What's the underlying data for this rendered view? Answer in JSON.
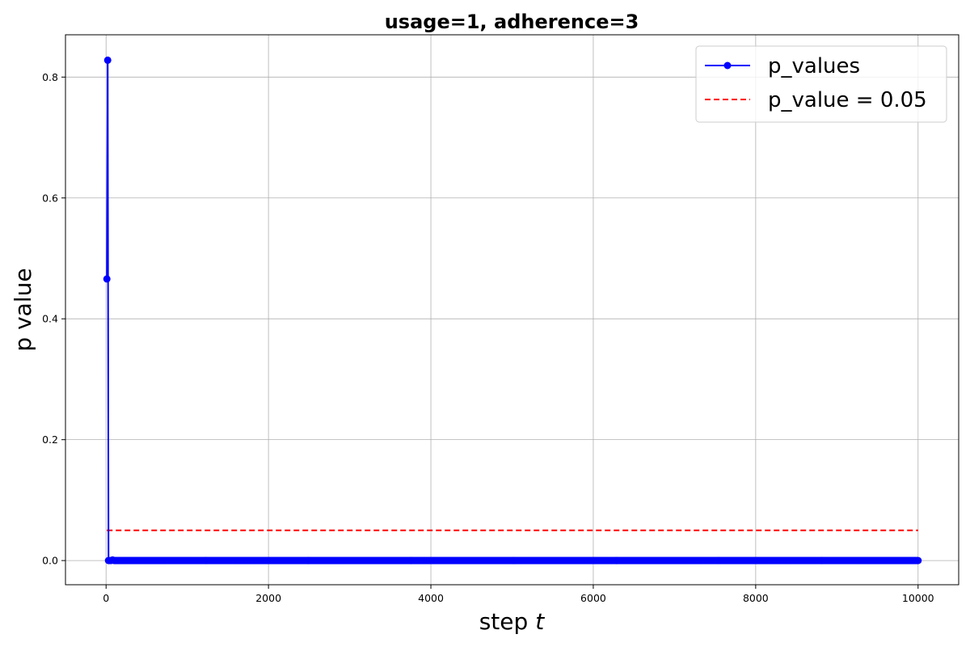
{
  "chart_data": {
    "type": "line",
    "title": "usage=1, adherence=3",
    "xlabel": "step",
    "xlabel_var": "t",
    "ylabel": "p value",
    "xlim": [
      -500,
      10500
    ],
    "ylim": [
      -0.04,
      0.87
    ],
    "x_ticks": [
      0,
      2000,
      4000,
      6000,
      8000,
      10000
    ],
    "x_tick_labels": [
      "0",
      "2000",
      "4000",
      "6000",
      "8000",
      "10000"
    ],
    "y_ticks": [
      0.0,
      0.2,
      0.4,
      0.6,
      0.8
    ],
    "y_tick_labels": [
      "0.0",
      "0.2",
      "0.4",
      "0.6",
      "0.8"
    ],
    "grid": true,
    "legend_position": "top-right",
    "series": [
      {
        "name": "p_values",
        "color": "#0000ff",
        "style": "solid",
        "marker": "circle",
        "x": [
          10,
          20,
          30,
          40,
          60,
          80,
          100,
          10000
        ],
        "y": [
          0.466,
          0.828,
          0.0,
          0.0,
          0.0,
          0.001,
          0.0,
          0.0
        ],
        "x_step": 10,
        "tail_value": 0.0
      },
      {
        "name": "p_value = 0.05",
        "color": "#ff0000",
        "style": "dashed",
        "x": [
          10,
          10000
        ],
        "y": [
          0.05,
          0.05
        ]
      }
    ]
  }
}
